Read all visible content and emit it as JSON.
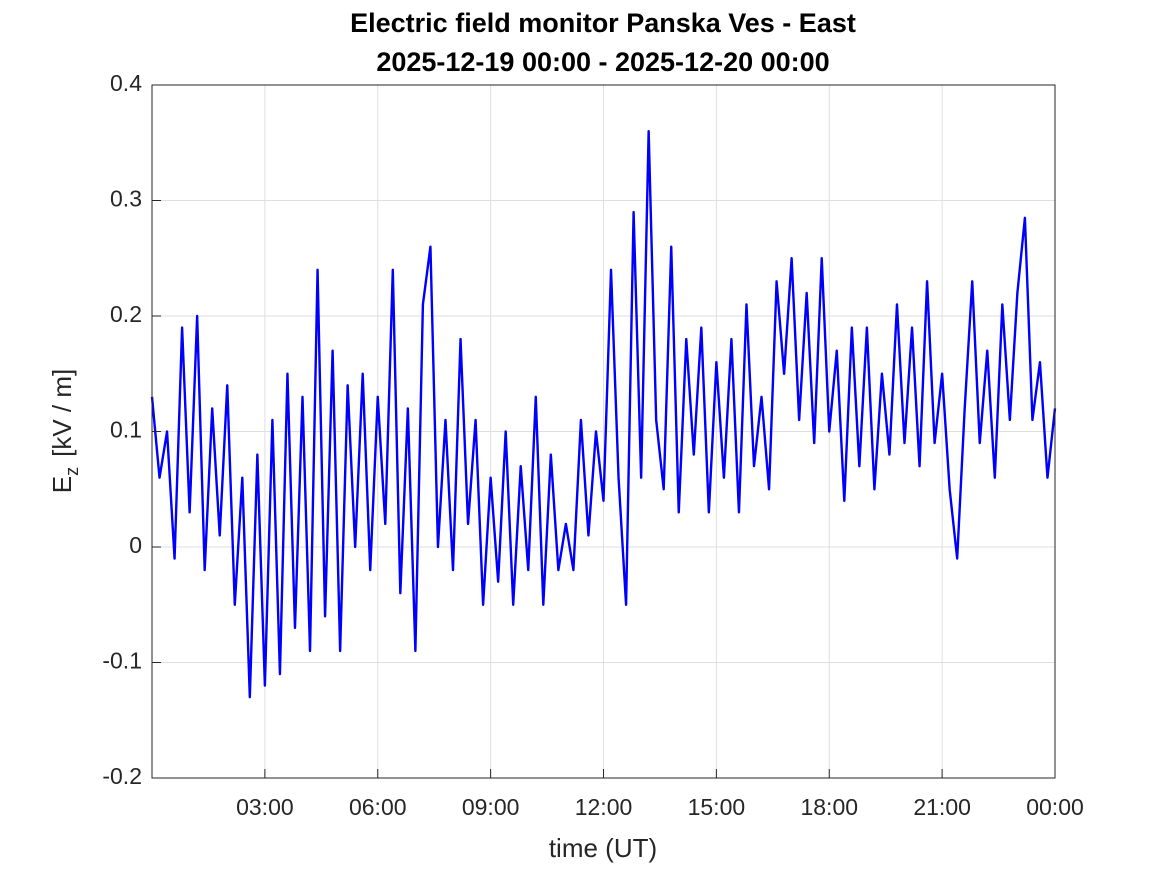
{
  "chart_data": {
    "type": "line",
    "title": "Electric field monitor Panska Ves - East",
    "subtitle": "2025-12-19 00:00 - 2025-12-20 00:00",
    "xlabel": "time (UT)",
    "ylabel": {
      "symbol": "E",
      "subscript": "z",
      "unit": "[kV / m]"
    },
    "x": [
      0,
      0.2,
      0.4,
      0.6,
      0.8,
      1,
      1.2,
      1.4,
      1.6,
      1.8,
      2,
      2.2,
      2.4,
      2.6,
      2.8,
      3,
      3.2,
      3.4,
      3.6,
      3.8,
      4,
      4.2,
      4.4,
      4.6,
      4.8,
      5,
      5.2,
      5.4,
      5.6,
      5.8,
      6,
      6.2,
      6.4,
      6.6,
      6.8,
      7,
      7.2,
      7.4,
      7.6,
      7.8,
      8,
      8.2,
      8.4,
      8.6,
      8.8,
      9,
      9.2,
      9.4,
      9.6,
      9.8,
      10,
      10.2,
      10.4,
      10.6,
      10.8,
      11,
      11.2,
      11.4,
      11.6,
      11.8,
      12,
      12.2,
      12.4,
      12.6,
      12.8,
      13,
      13.2,
      13.4,
      13.6,
      13.8,
      14,
      14.2,
      14.4,
      14.6,
      14.8,
      15,
      15.2,
      15.4,
      15.6,
      15.8,
      16,
      16.2,
      16.4,
      16.6,
      16.8,
      17,
      17.2,
      17.4,
      17.6,
      17.8,
      18,
      18.2,
      18.4,
      18.6,
      18.8,
      19,
      19.2,
      19.4,
      19.6,
      19.8,
      20,
      20.2,
      20.4,
      20.6,
      20.8,
      21,
      21.2,
      21.4,
      21.6,
      21.8,
      22,
      22.2,
      22.4,
      22.6,
      22.8,
      23,
      23.2,
      23.4,
      23.6,
      23.8,
      24
    ],
    "series": [
      {
        "color": "#0000ff",
        "values": [
          0.13,
          0.06,
          0.1,
          -0.01,
          0.19,
          0.03,
          0.2,
          -0.02,
          0.12,
          0.01,
          0.14,
          -0.05,
          0.06,
          -0.13,
          0.08,
          -0.12,
          0.11,
          -0.11,
          0.15,
          -0.07,
          0.13,
          -0.09,
          0.24,
          -0.06,
          0.17,
          -0.09,
          0.14,
          0.0,
          0.15,
          -0.02,
          0.13,
          0.02,
          0.24,
          -0.04,
          0.12,
          -0.09,
          0.21,
          0.26,
          0.0,
          0.11,
          -0.02,
          0.18,
          0.02,
          0.11,
          -0.05,
          0.06,
          -0.03,
          0.1,
          -0.05,
          0.07,
          -0.02,
          0.13,
          -0.05,
          0.08,
          -0.02,
          0.02,
          -0.02,
          0.11,
          0.01,
          0.1,
          0.04,
          0.24,
          0.06,
          -0.05,
          0.29,
          0.06,
          0.36,
          0.11,
          0.05,
          0.26,
          0.03,
          0.18,
          0.08,
          0.19,
          0.03,
          0.16,
          0.06,
          0.18,
          0.03,
          0.21,
          0.07,
          0.13,
          0.05,
          0.23,
          0.15,
          0.25,
          0.11,
          0.22,
          0.09,
          0.25,
          0.1,
          0.17,
          0.04,
          0.19,
          0.07,
          0.19,
          0.05,
          0.15,
          0.08,
          0.21,
          0.09,
          0.19,
          0.07,
          0.23,
          0.09,
          0.15,
          0.05,
          -0.01,
          0.12,
          0.23,
          0.09,
          0.17,
          0.06,
          0.21,
          0.11,
          0.22,
          0.285,
          0.11,
          0.16,
          0.06,
          0.12
        ]
      }
    ],
    "xlim": [
      0,
      24
    ],
    "xticks": [
      {
        "value": 3,
        "label": "03:00"
      },
      {
        "value": 6,
        "label": "06:00"
      },
      {
        "value": 9,
        "label": "09:00"
      },
      {
        "value": 12,
        "label": "12:00"
      },
      {
        "value": 15,
        "label": "15:00"
      },
      {
        "value": 18,
        "label": "18:00"
      },
      {
        "value": 21,
        "label": "21:00"
      },
      {
        "value": 24,
        "label": "00:00"
      }
    ],
    "ylim": [
      -0.2,
      0.4
    ],
    "yticks": [
      -0.2,
      -0.1,
      0,
      0.1,
      0.2,
      0.3,
      0.4
    ],
    "grid": true
  }
}
